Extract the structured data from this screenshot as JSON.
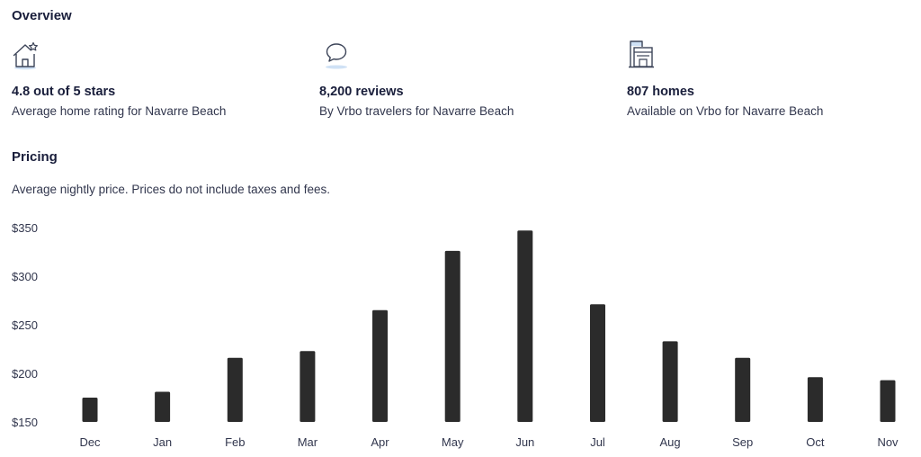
{
  "overview": {
    "title": "Overview",
    "stats": [
      {
        "icon": "house-star-icon",
        "value": "4.8 out of 5 stars",
        "description": "Average home rating for Navarre Beach"
      },
      {
        "icon": "speech-bubble-icon",
        "value": "8,200 reviews",
        "description": "By Vrbo travelers for Navarre Beach"
      },
      {
        "icon": "building-icon",
        "value": "807 homes",
        "description": "Available on Vrbo for Navarre Beach"
      }
    ]
  },
  "pricing": {
    "title": "Pricing",
    "subtitle": "Average nightly price. Prices do not include taxes and fees."
  },
  "colors": {
    "bar": "#2b2b2b",
    "text_primary": "#191e3b",
    "text_secondary": "#31364d",
    "icon_stroke": "#3c4458",
    "icon_accent": "#cfe1f5"
  },
  "chart_data": {
    "type": "bar",
    "categories": [
      "Dec",
      "Jan",
      "Feb",
      "Mar",
      "Apr",
      "May",
      "Jun",
      "Jul",
      "Aug",
      "Sep",
      "Oct",
      "Nov"
    ],
    "values": [
      175,
      181,
      216,
      223,
      265,
      326,
      347,
      271,
      233,
      216,
      196,
      193
    ],
    "ylim": [
      150,
      350
    ],
    "yticks": [
      150,
      200,
      250,
      300,
      350
    ],
    "ytick_labels": [
      "$150",
      "$200",
      "$250",
      "$300",
      "$350"
    ],
    "grid": false,
    "legend": "none"
  }
}
